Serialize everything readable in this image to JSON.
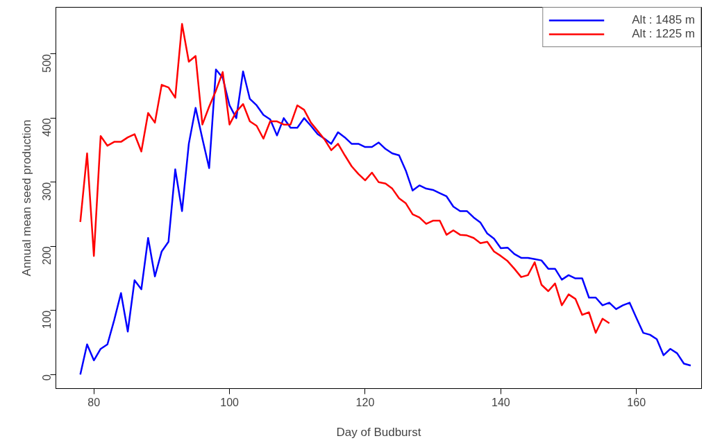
{
  "chart_data": {
    "type": "line",
    "xlabel": "Day of Budburst",
    "ylabel": "Annual mean seed production",
    "xlim": [
      74.4,
      169.6
    ],
    "ylim": [
      -22,
      573
    ],
    "xticks": [
      80,
      100,
      120,
      140,
      160
    ],
    "yticks": [
      0,
      100,
      200,
      300,
      400,
      500
    ],
    "grid": false,
    "legend": "top right",
    "line_style": "solid",
    "marker": "none",
    "series": [
      {
        "name": "Alt : 1485 m",
        "color": "#0000ff",
        "x": [
          78,
          79,
          80,
          81,
          82,
          83,
          84,
          85,
          86,
          87,
          88,
          89,
          90,
          91,
          92,
          93,
          94,
          95,
          96,
          97,
          98,
          99,
          100,
          101,
          102,
          103,
          104,
          105,
          106,
          107,
          108,
          109,
          110,
          111,
          112,
          113,
          114,
          115,
          116,
          117,
          118,
          119,
          120,
          121,
          122,
          123,
          124,
          125,
          126,
          127,
          128,
          129,
          130,
          131,
          132,
          133,
          134,
          135,
          136,
          137,
          138,
          139,
          140,
          141,
          142,
          143,
          144,
          145,
          146,
          147,
          148,
          149,
          150,
          151,
          152,
          153,
          154,
          155,
          156,
          157,
          158,
          159,
          160,
          161,
          162,
          163,
          164,
          165,
          166,
          167,
          168
        ],
        "values": [
          0,
          47,
          22,
          40,
          47,
          85,
          127,
          67,
          147,
          133,
          213,
          153,
          192,
          207,
          320,
          255,
          360,
          416,
          368,
          322,
          476,
          463,
          420,
          400,
          473,
          430,
          420,
          405,
          398,
          373,
          400,
          385,
          385,
          400,
          388,
          375,
          368,
          360,
          378,
          370,
          360,
          360,
          355,
          355,
          362,
          352,
          345,
          342,
          318,
          287,
          295,
          290,
          288,
          283,
          278,
          262,
          255,
          255,
          245,
          237,
          220,
          212,
          197,
          198,
          188,
          182,
          182,
          180,
          178,
          165,
          165,
          148,
          155,
          150,
          150,
          120,
          120,
          108,
          112,
          102,
          108,
          112,
          88,
          65,
          62,
          55,
          30,
          40,
          33,
          17,
          14
        ]
      },
      {
        "name": "Alt : 1225 m",
        "color": "#ff0000",
        "x": [
          78,
          79,
          80,
          81,
          82,
          83,
          84,
          85,
          86,
          87,
          88,
          89,
          90,
          91,
          92,
          93,
          94,
          95,
          96,
          97,
          98,
          99,
          100,
          101,
          102,
          103,
          104,
          105,
          106,
          107,
          108,
          109,
          110,
          111,
          112,
          113,
          114,
          115,
          116,
          117,
          118,
          119,
          120,
          121,
          122,
          123,
          124,
          125,
          126,
          127,
          128,
          129,
          130,
          131,
          132,
          133,
          134,
          135,
          136,
          137,
          138,
          139,
          140,
          141,
          142,
          143,
          144,
          145,
          146,
          147,
          148,
          149,
          150,
          151,
          152,
          153,
          154,
          155,
          156
        ],
        "values": [
          238,
          345,
          185,
          372,
          357,
          363,
          363,
          370,
          375,
          348,
          408,
          393,
          452,
          448,
          432,
          547,
          488,
          497,
          390,
          418,
          443,
          472,
          390,
          410,
          422,
          395,
          388,
          368,
          395,
          395,
          390,
          390,
          420,
          413,
          393,
          380,
          367,
          350,
          360,
          342,
          325,
          313,
          303,
          315,
          300,
          298,
          290,
          275,
          267,
          250,
          245,
          235,
          240,
          240,
          218,
          225,
          218,
          217,
          213,
          205,
          207,
          192,
          185,
          177,
          165,
          152,
          155,
          175,
          140,
          130,
          142,
          108,
          125,
          118,
          93,
          97,
          65,
          87,
          80
        ]
      }
    ]
  }
}
